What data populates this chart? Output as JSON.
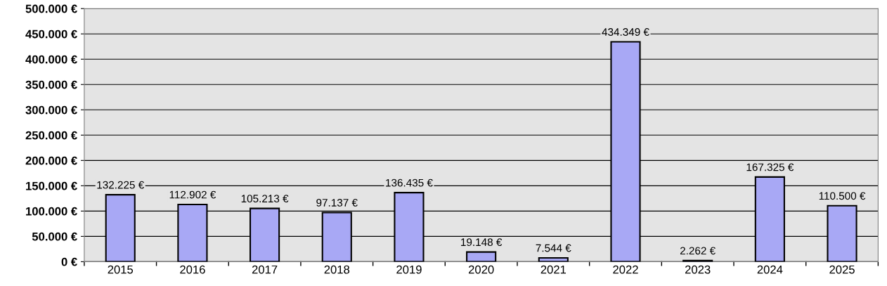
{
  "chart_data": {
    "type": "bar",
    "categories": [
      "2015",
      "2016",
      "2017",
      "2018",
      "2019",
      "2020",
      "2021",
      "2022",
      "2023",
      "2024",
      "2025"
    ],
    "values": [
      132225,
      112902,
      105213,
      97137,
      136435,
      19148,
      7544,
      434349,
      2262,
      167325,
      110500
    ],
    "value_labels": [
      "132.225 €",
      "112.902 €",
      "105.213 €",
      "97.137 €",
      "136.435 €",
      "19.148 €",
      "7.544 €",
      "434.349 €",
      "2.262 €",
      "167.325 €",
      "110.500 €"
    ],
    "color": "#a8a8f5",
    "ylim": [
      0,
      500000
    ],
    "yticks": [
      {
        "value": 0,
        "label": "0 €"
      },
      {
        "value": 50000,
        "label": "50.000 €"
      },
      {
        "value": 100000,
        "label": "100.000 €"
      },
      {
        "value": 150000,
        "label": "150.000 €"
      },
      {
        "value": 200000,
        "label": "200.000 €"
      },
      {
        "value": 250000,
        "label": "250.000 €"
      },
      {
        "value": 300000,
        "label": "300.000 €"
      },
      {
        "value": 350000,
        "label": "350.000 €"
      },
      {
        "value": 400000,
        "label": "400.000 €"
      },
      {
        "value": 450000,
        "label": "450.000 €"
      },
      {
        "value": 500000,
        "label": "500.000 €"
      }
    ],
    "grid": "y"
  }
}
